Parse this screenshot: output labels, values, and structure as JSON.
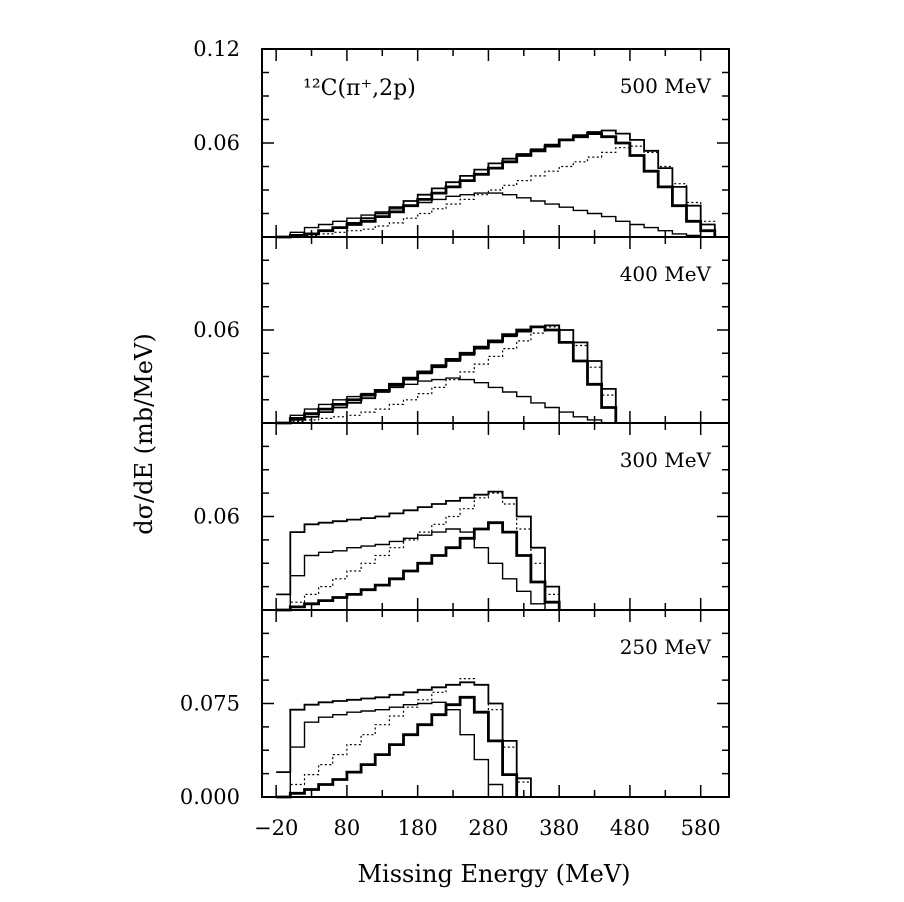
{
  "chart_data": {
    "type": "line",
    "reaction_label": "¹²C(π⁺,2p)",
    "xlabel": "Missing Energy (MeV)",
    "ylabel": "dσ/dE (mb/MeV)",
    "xlim": [
      -40,
      620
    ],
    "xticks": [
      -20,
      80,
      180,
      280,
      380,
      480,
      580
    ],
    "xtick_labels": [
      "−20",
      "80",
      "180",
      "280",
      "380",
      "480",
      "580"
    ],
    "panels": [
      {
        "label": "500 MeV",
        "ylim": [
          0,
          0.12
        ],
        "yticks": [
          0.06,
          0.12
        ],
        "ytick_labels": [
          "0.06",
          "0.12"
        ],
        "series": [
          {
            "x": [
              -20,
              0,
              20,
              40,
              60,
              80,
              100,
              120,
              140,
              160,
              180,
              200,
              220,
              240,
              260,
              280,
              300,
              320,
              340,
              360,
              380,
              400,
              420,
              440,
              460,
              480,
              500,
              520,
              540,
              560,
              580,
              600
            ],
            "y": [
              0,
              0.003,
              0.006,
              0.008,
              0.01,
              0.012,
              0.014,
              0.016,
              0.018,
              0.02,
              0.022,
              0.024,
              0.026,
              0.027,
              0.028,
              0.028,
              0.027,
              0.025,
              0.023,
              0.021,
              0.019,
              0.017,
              0.015,
              0.013,
              0.01,
              0.008,
              0.006,
              0.004,
              0.002,
              0.001,
              0,
              0
            ]
          },
          {
            "x": [
              -20,
              0,
              20,
              40,
              60,
              80,
              100,
              120,
              140,
              160,
              180,
              200,
              220,
              240,
              260,
              280,
              300,
              320,
              340,
              360,
              380,
              400,
              420,
              440,
              460,
              480,
              500,
              520,
              540,
              560,
              580,
              600
            ],
            "y": [
              0,
              0.001,
              0.002,
              0.004,
              0.006,
              0.008,
              0.01,
              0.013,
              0.016,
              0.02,
              0.024,
              0.028,
              0.032,
              0.036,
              0.04,
              0.044,
              0.048,
              0.052,
              0.055,
              0.058,
              0.062,
              0.064,
              0.066,
              0.064,
              0.06,
              0.052,
              0.042,
              0.032,
              0.02,
              0.01,
              0.004,
              0
            ]
          },
          {
            "x": [
              -20,
              0,
              20,
              40,
              60,
              80,
              100,
              120,
              140,
              160,
              180,
              200,
              220,
              240,
              260,
              280,
              300,
              320,
              340,
              360,
              380,
              400,
              420,
              440,
              460,
              480,
              500,
              520,
              540,
              560,
              580,
              600
            ],
            "y": [
              0,
              0.0005,
              0.001,
              0.002,
              0.003,
              0.004,
              0.005,
              0.007,
              0.009,
              0.012,
              0.015,
              0.018,
              0.021,
              0.024,
              0.027,
              0.03,
              0.033,
              0.036,
              0.039,
              0.042,
              0.045,
              0.048,
              0.051,
              0.054,
              0.057,
              0.058,
              0.054,
              0.045,
              0.034,
              0.022,
              0.01,
              0
            ]
          },
          {
            "x": [
              -20,
              0,
              20,
              40,
              60,
              80,
              100,
              120,
              140,
              160,
              180,
              200,
              220,
              240,
              260,
              280,
              300,
              320,
              340,
              360,
              380,
              400,
              420,
              440,
              460,
              480,
              500,
              520,
              540,
              560,
              580,
              600
            ],
            "y": [
              0,
              0.001,
              0.002,
              0.004,
              0.006,
              0.009,
              0.012,
              0.015,
              0.019,
              0.023,
              0.027,
              0.031,
              0.035,
              0.039,
              0.043,
              0.047,
              0.05,
              0.053,
              0.056,
              0.059,
              0.062,
              0.065,
              0.067,
              0.068,
              0.066,
              0.062,
              0.055,
              0.044,
              0.032,
              0.02,
              0.008,
              0
            ]
          }
        ]
      },
      {
        "label": "400 MeV",
        "ylim": [
          0,
          0.12
        ],
        "yticks": [
          0.06
        ],
        "ytick_labels": [
          "0.06"
        ],
        "series": [
          {
            "x": [
              -20,
              0,
              20,
              40,
              60,
              80,
              100,
              120,
              140,
              160,
              180,
              200,
              220,
              240,
              260,
              280,
              300,
              320,
              340,
              360,
              380,
              400,
              420,
              440,
              460
            ],
            "y": [
              0,
              0.005,
              0.009,
              0.012,
              0.015,
              0.017,
              0.019,
              0.021,
              0.023,
              0.025,
              0.027,
              0.028,
              0.029,
              0.028,
              0.026,
              0.023,
              0.02,
              0.017,
              0.013,
              0.01,
              0.007,
              0.004,
              0.002,
              0,
              0
            ]
          },
          {
            "x": [
              -20,
              0,
              20,
              40,
              60,
              80,
              100,
              120,
              140,
              160,
              180,
              200,
              220,
              240,
              260,
              280,
              300,
              320,
              340,
              360,
              380,
              400,
              420,
              440,
              460
            ],
            "y": [
              0,
              0.003,
              0.006,
              0.009,
              0.012,
              0.015,
              0.018,
              0.021,
              0.025,
              0.029,
              0.033,
              0.037,
              0.041,
              0.045,
              0.049,
              0.053,
              0.057,
              0.06,
              0.062,
              0.06,
              0.052,
              0.04,
              0.025,
              0.01,
              0
            ]
          },
          {
            "x": [
              -20,
              0,
              20,
              40,
              60,
              80,
              100,
              120,
              140,
              160,
              180,
              200,
              220,
              240,
              260,
              280,
              300,
              320,
              340,
              360,
              380,
              400,
              420,
              440,
              460
            ],
            "y": [
              0,
              0.001,
              0.002,
              0.003,
              0.004,
              0.005,
              0.007,
              0.009,
              0.012,
              0.015,
              0.019,
              0.023,
              0.028,
              0.033,
              0.038,
              0.043,
              0.048,
              0.053,
              0.058,
              0.062,
              0.06,
              0.05,
              0.036,
              0.018,
              0
            ]
          },
          {
            "x": [
              -20,
              0,
              20,
              40,
              60,
              80,
              100,
              120,
              140,
              160,
              180,
              200,
              220,
              240,
              260,
              280,
              300,
              320,
              340,
              360,
              380,
              400,
              420,
              440,
              460
            ],
            "y": [
              0,
              0.002,
              0.004,
              0.007,
              0.01,
              0.013,
              0.016,
              0.02,
              0.024,
              0.028,
              0.032,
              0.036,
              0.04,
              0.044,
              0.048,
              0.052,
              0.056,
              0.059,
              0.062,
              0.063,
              0.06,
              0.052,
              0.04,
              0.022,
              0
            ]
          }
        ]
      },
      {
        "label": "300 MeV",
        "ylim": [
          0,
          0.12
        ],
        "yticks": [
          0.06
        ],
        "ytick_labels": [
          "0.06"
        ],
        "series": [
          {
            "x": [
              -20,
              0,
              20,
              40,
              60,
              80,
              100,
              120,
              140,
              160,
              180,
              200,
              220,
              240,
              260,
              280,
              300,
              320,
              340,
              360
            ],
            "y": [
              0,
              0.022,
              0.035,
              0.037,
              0.038,
              0.04,
              0.041,
              0.042,
              0.044,
              0.046,
              0.048,
              0.05,
              0.052,
              0.05,
              0.04,
              0.03,
              0.02,
              0.012,
              0.004,
              0
            ]
          },
          {
            "x": [
              -20,
              0,
              20,
              40,
              60,
              80,
              100,
              120,
              140,
              160,
              180,
              200,
              220,
              240,
              260,
              280,
              300,
              320,
              340,
              360,
              380
            ],
            "y": [
              0,
              0.002,
              0.004,
              0.006,
              0.008,
              0.01,
              0.013,
              0.016,
              0.02,
              0.025,
              0.03,
              0.035,
              0.04,
              0.046,
              0.052,
              0.056,
              0.05,
              0.035,
              0.018,
              0.005,
              0
            ]
          },
          {
            "x": [
              -20,
              0,
              20,
              40,
              60,
              80,
              100,
              120,
              140,
              160,
              180,
              200,
              220,
              240,
              260,
              280,
              300,
              320,
              340,
              360,
              380
            ],
            "y": [
              0,
              0.005,
              0.01,
              0.015,
              0.02,
              0.025,
              0.03,
              0.035,
              0.04,
              0.045,
              0.05,
              0.055,
              0.06,
              0.065,
              0.072,
              0.075,
              0.068,
              0.052,
              0.03,
              0.01,
              0
            ]
          },
          {
            "x": [
              -20,
              0,
              20,
              40,
              60,
              80,
              100,
              120,
              140,
              160,
              180,
              200,
              220,
              240,
              260,
              280,
              300,
              320,
              340,
              360,
              380
            ],
            "y": [
              0.01,
              0.05,
              0.055,
              0.056,
              0.057,
              0.058,
              0.059,
              0.06,
              0.062,
              0.064,
              0.066,
              0.068,
              0.07,
              0.072,
              0.074,
              0.076,
              0.072,
              0.06,
              0.04,
              0.015,
              0
            ]
          }
        ]
      },
      {
        "label": "250 MeV",
        "ylim": [
          0,
          0.15
        ],
        "yticks": [
          0,
          0.075
        ],
        "ytick_labels": [
          "0.000",
          "0.075"
        ],
        "series": [
          {
            "x": [
              -20,
              0,
              20,
              40,
              60,
              80,
              100,
              120,
              140,
              160,
              180,
              200,
              220,
              240,
              260,
              280,
              300
            ],
            "y": [
              0,
              0.04,
              0.06,
              0.064,
              0.066,
              0.068,
              0.069,
              0.07,
              0.072,
              0.074,
              0.075,
              0.076,
              0.07,
              0.05,
              0.03,
              0.01,
              0
            ]
          },
          {
            "x": [
              -20,
              0,
              20,
              40,
              60,
              80,
              100,
              120,
              140,
              160,
              180,
              200,
              220,
              240,
              260,
              280,
              300,
              320
            ],
            "y": [
              0,
              0.003,
              0.006,
              0.01,
              0.014,
              0.02,
              0.026,
              0.034,
              0.042,
              0.05,
              0.058,
              0.066,
              0.074,
              0.08,
              0.068,
              0.045,
              0.018,
              0
            ]
          },
          {
            "x": [
              -20,
              0,
              20,
              40,
              60,
              80,
              100,
              120,
              140,
              160,
              180,
              200,
              220,
              240,
              260,
              280,
              300,
              320,
              340
            ],
            "y": [
              0,
              0.01,
              0.018,
              0.026,
              0.034,
              0.042,
              0.05,
              0.058,
              0.065,
              0.072,
              0.078,
              0.084,
              0.09,
              0.095,
              0.09,
              0.07,
              0.04,
              0.012,
              0
            ]
          },
          {
            "x": [
              -20,
              0,
              20,
              40,
              60,
              80,
              100,
              120,
              140,
              160,
              180,
              200,
              220,
              240,
              260,
              280,
              300,
              320,
              340
            ],
            "y": [
              0.02,
              0.07,
              0.074,
              0.076,
              0.077,
              0.078,
              0.079,
              0.08,
              0.082,
              0.084,
              0.086,
              0.088,
              0.09,
              0.092,
              0.09,
              0.075,
              0.045,
              0.015,
              0
            ]
          }
        ]
      }
    ]
  }
}
